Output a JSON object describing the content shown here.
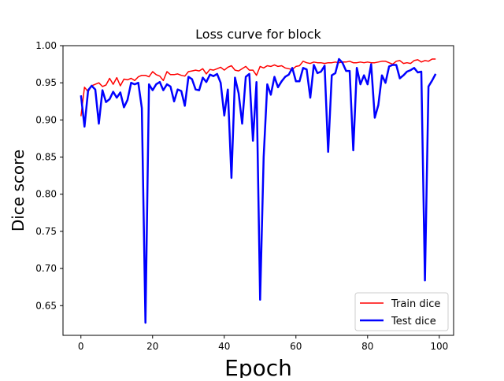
{
  "chart_data": {
    "type": "line",
    "title": "Loss curve for block",
    "xlabel": "Epoch",
    "ylabel": "Dice score",
    "xlim": [
      -5,
      104
    ],
    "ylim": [
      0.61,
      1.0
    ],
    "x_ticks": [
      0,
      20,
      40,
      60,
      80,
      100
    ],
    "x_tick_labels": [
      "0",
      "20",
      "40",
      "60",
      "80",
      "100"
    ],
    "y_ticks": [
      0.65,
      0.7,
      0.75,
      0.8,
      0.85,
      0.9,
      0.95,
      1.0
    ],
    "y_tick_labels": [
      "0.65",
      "0.70",
      "0.75",
      "0.80",
      "0.85",
      "0.90",
      "0.95",
      "1.00"
    ],
    "grid": false,
    "legend_position": "lower-right",
    "x": [
      0,
      1,
      2,
      3,
      4,
      5,
      6,
      7,
      8,
      9,
      10,
      11,
      12,
      13,
      14,
      15,
      16,
      17,
      18,
      19,
      20,
      21,
      22,
      23,
      24,
      25,
      26,
      27,
      28,
      29,
      30,
      31,
      32,
      33,
      34,
      35,
      36,
      37,
      38,
      39,
      40,
      41,
      42,
      43,
      44,
      45,
      46,
      47,
      48,
      49,
      50,
      51,
      52,
      53,
      54,
      55,
      56,
      57,
      58,
      59,
      60,
      61,
      62,
      63,
      64,
      65,
      66,
      67,
      68,
      69,
      70,
      71,
      72,
      73,
      74,
      75,
      76,
      77,
      78,
      79,
      80,
      81,
      82,
      83,
      84,
      85,
      86,
      87,
      88,
      89,
      90,
      91,
      92,
      93,
      94,
      95,
      96,
      97,
      98,
      99
    ],
    "series": [
      {
        "name": "Train dice",
        "color": "#ff0000",
        "line_width": 1.5,
        "values": [
          0.905,
          0.944,
          0.938,
          0.946,
          0.948,
          0.95,
          0.945,
          0.947,
          0.956,
          0.948,
          0.957,
          0.946,
          0.955,
          0.954,
          0.956,
          0.953,
          0.958,
          0.96,
          0.96,
          0.958,
          0.965,
          0.961,
          0.959,
          0.953,
          0.965,
          0.961,
          0.961,
          0.962,
          0.96,
          0.959,
          0.965,
          0.966,
          0.967,
          0.966,
          0.969,
          0.962,
          0.968,
          0.967,
          0.969,
          0.971,
          0.967,
          0.971,
          0.973,
          0.967,
          0.966,
          0.969,
          0.972,
          0.967,
          0.967,
          0.96,
          0.972,
          0.97,
          0.973,
          0.972,
          0.974,
          0.972,
          0.973,
          0.97,
          0.969,
          0.968,
          0.972,
          0.973,
          0.979,
          0.977,
          0.976,
          0.978,
          0.977,
          0.977,
          0.976,
          0.977,
          0.977,
          0.978,
          0.977,
          0.978,
          0.978,
          0.979,
          0.977,
          0.977,
          0.978,
          0.977,
          0.978,
          0.977,
          0.977,
          0.978,
          0.979,
          0.979,
          0.977,
          0.975,
          0.979,
          0.98,
          0.976,
          0.977,
          0.976,
          0.98,
          0.981,
          0.978,
          0.98,
          0.979,
          0.982,
          0.982
        ]
      },
      {
        "name": "Test dice",
        "color": "#0000ff",
        "line_width": 2.5,
        "values": [
          0.933,
          0.891,
          0.94,
          0.946,
          0.941,
          0.895,
          0.94,
          0.924,
          0.928,
          0.938,
          0.93,
          0.937,
          0.917,
          0.927,
          0.95,
          0.948,
          0.95,
          0.916,
          0.627,
          0.948,
          0.94,
          0.948,
          0.951,
          0.94,
          0.948,
          0.945,
          0.925,
          0.941,
          0.939,
          0.919,
          0.958,
          0.955,
          0.941,
          0.94,
          0.957,
          0.951,
          0.961,
          0.959,
          0.962,
          0.95,
          0.906,
          0.941,
          0.822,
          0.957,
          0.936,
          0.895,
          0.958,
          0.962,
          0.872,
          0.951,
          0.658,
          0.85,
          0.948,
          0.934,
          0.958,
          0.944,
          0.952,
          0.958,
          0.961,
          0.97,
          0.952,
          0.952,
          0.97,
          0.968,
          0.93,
          0.974,
          0.963,
          0.965,
          0.973,
          0.857,
          0.96,
          0.963,
          0.982,
          0.977,
          0.966,
          0.966,
          0.859,
          0.97,
          0.948,
          0.96,
          0.948,
          0.975,
          0.903,
          0.92,
          0.96,
          0.95,
          0.972,
          0.974,
          0.974,
          0.956,
          0.96,
          0.965,
          0.967,
          0.97,
          0.964,
          0.965,
          0.684,
          0.945,
          0.953,
          0.962
        ]
      }
    ]
  }
}
